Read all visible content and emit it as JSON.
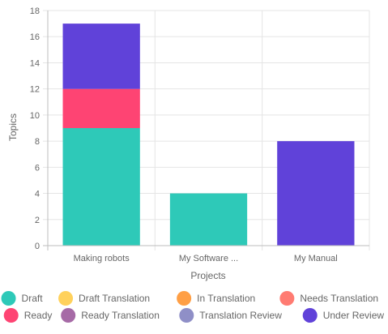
{
  "chart_data": {
    "type": "bar",
    "stacked": true,
    "title": "",
    "xlabel": "Projects",
    "ylabel": "Topics",
    "ylim": [
      0,
      18
    ],
    "ytick_step": 2,
    "grid": true,
    "legend_position": "bottom",
    "categories": [
      "Making robots",
      "My Software ...",
      "My Manual"
    ],
    "series": [
      {
        "name": "Draft",
        "color": "#2ec9b8",
        "values": [
          9,
          4,
          0
        ]
      },
      {
        "name": "Draft Translation",
        "color": "#ffd15c",
        "values": [
          0,
          0,
          0
        ]
      },
      {
        "name": "In Translation",
        "color": "#ff9f45",
        "values": [
          0,
          0,
          0
        ]
      },
      {
        "name": "Needs Translation",
        "color": "#ff7b72",
        "values": [
          0,
          0,
          0
        ]
      },
      {
        "name": "Ready",
        "color": "#fe4473",
        "values": [
          3,
          0,
          0
        ]
      },
      {
        "name": "Ready Translation",
        "color": "#a66aa6",
        "values": [
          0,
          0,
          0
        ]
      },
      {
        "name": "Translation Review",
        "color": "#8f8fc7",
        "values": [
          0,
          0,
          0
        ]
      },
      {
        "name": "Under Review",
        "color": "#6042d9",
        "values": [
          5,
          0,
          8
        ]
      }
    ]
  }
}
